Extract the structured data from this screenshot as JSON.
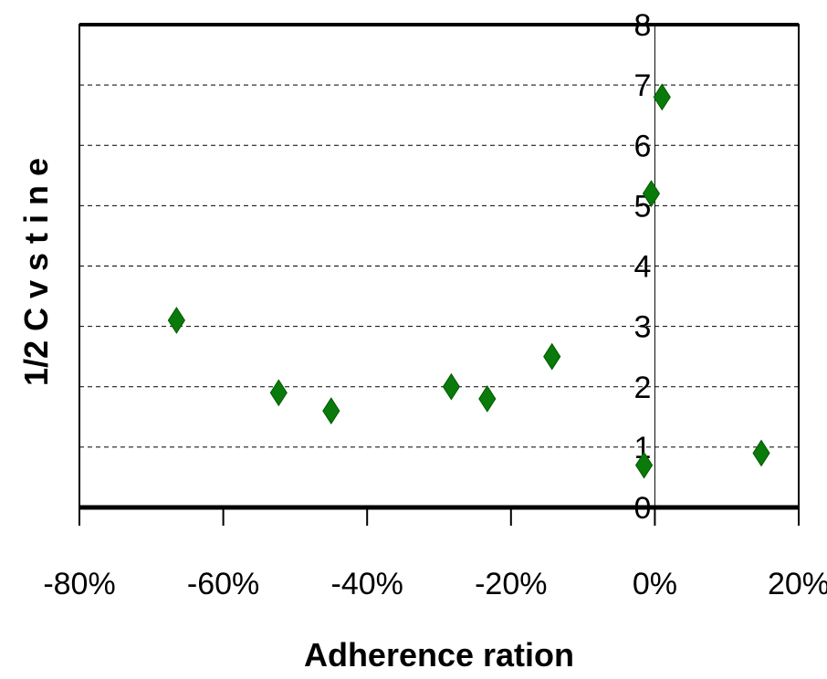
{
  "chart_data": {
    "type": "scatter",
    "title": "",
    "xlabel": "Adherence ration",
    "ylabel": "1/2 C v s t i n e",
    "xlim": [
      -0.8,
      0.2
    ],
    "ylim": [
      0,
      8
    ],
    "x_ticks": [
      -0.8,
      -0.6,
      -0.4,
      -0.2,
      0,
      0.2
    ],
    "x_tick_labels": [
      "-80%",
      "-60%",
      "-40%",
      "-20%",
      "0%",
      "20%"
    ],
    "y_ticks": [
      0,
      1,
      2,
      3,
      4,
      5,
      6,
      7,
      8
    ],
    "y_tick_labels": [
      "0",
      "1",
      "2",
      "3",
      "4",
      "5",
      "6",
      "7",
      "8"
    ],
    "grid": "horizontal dashed",
    "marker": "diamond",
    "marker_color": "#0a7a0a",
    "series": [
      {
        "x": [
          -0.665,
          -0.523,
          -0.45,
          -0.283,
          -0.233,
          -0.143,
          -0.015,
          -0.005,
          0.01,
          0.148
        ],
        "y": [
          3.1,
          1.9,
          1.6,
          2.0,
          1.8,
          2.5,
          0.7,
          5.2,
          6.8,
          0.9
        ]
      }
    ]
  }
}
